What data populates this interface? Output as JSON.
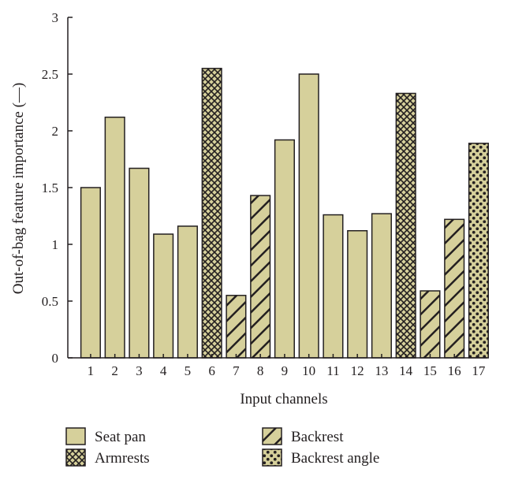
{
  "chart_data": {
    "type": "bar",
    "xlabel": "Input channels",
    "ylabel": "Out-of-bag feature importance (—)",
    "ylim": [
      0,
      3
    ],
    "yticks": [
      "0",
      "0.5",
      "1",
      "1.5",
      "2",
      "2.5",
      "3"
    ],
    "categories": [
      "1",
      "2",
      "3",
      "4",
      "5",
      "6",
      "7",
      "8",
      "9",
      "10",
      "11",
      "12",
      "13",
      "14",
      "15",
      "16",
      "17"
    ],
    "values": [
      1.5,
      2.12,
      1.67,
      1.09,
      1.16,
      2.55,
      0.55,
      1.43,
      1.92,
      2.5,
      1.26,
      1.12,
      1.27,
      2.33,
      0.59,
      1.22,
      1.89
    ],
    "groups": [
      "seat_pan",
      "seat_pan",
      "seat_pan",
      "seat_pan",
      "seat_pan",
      "armrests",
      "backrest",
      "backrest",
      "seat_pan",
      "seat_pan",
      "seat_pan",
      "seat_pan",
      "seat_pan",
      "armrests",
      "backrest",
      "backrest",
      "backrest_angle"
    ],
    "grid": false,
    "legend_position": "bottom",
    "legend": [
      {
        "key": "seat_pan",
        "label": "Seat pan",
        "pattern": "solid"
      },
      {
        "key": "backrest",
        "label": "Backrest",
        "pattern": "diagonal-hatch"
      },
      {
        "key": "armrests",
        "label": "Armrests",
        "pattern": "crosshatch"
      },
      {
        "key": "backrest_angle",
        "label": "Backrest angle",
        "pattern": "dots"
      }
    ],
    "colors": {
      "fill": "#d6d09b",
      "stroke": "#231f20"
    }
  }
}
